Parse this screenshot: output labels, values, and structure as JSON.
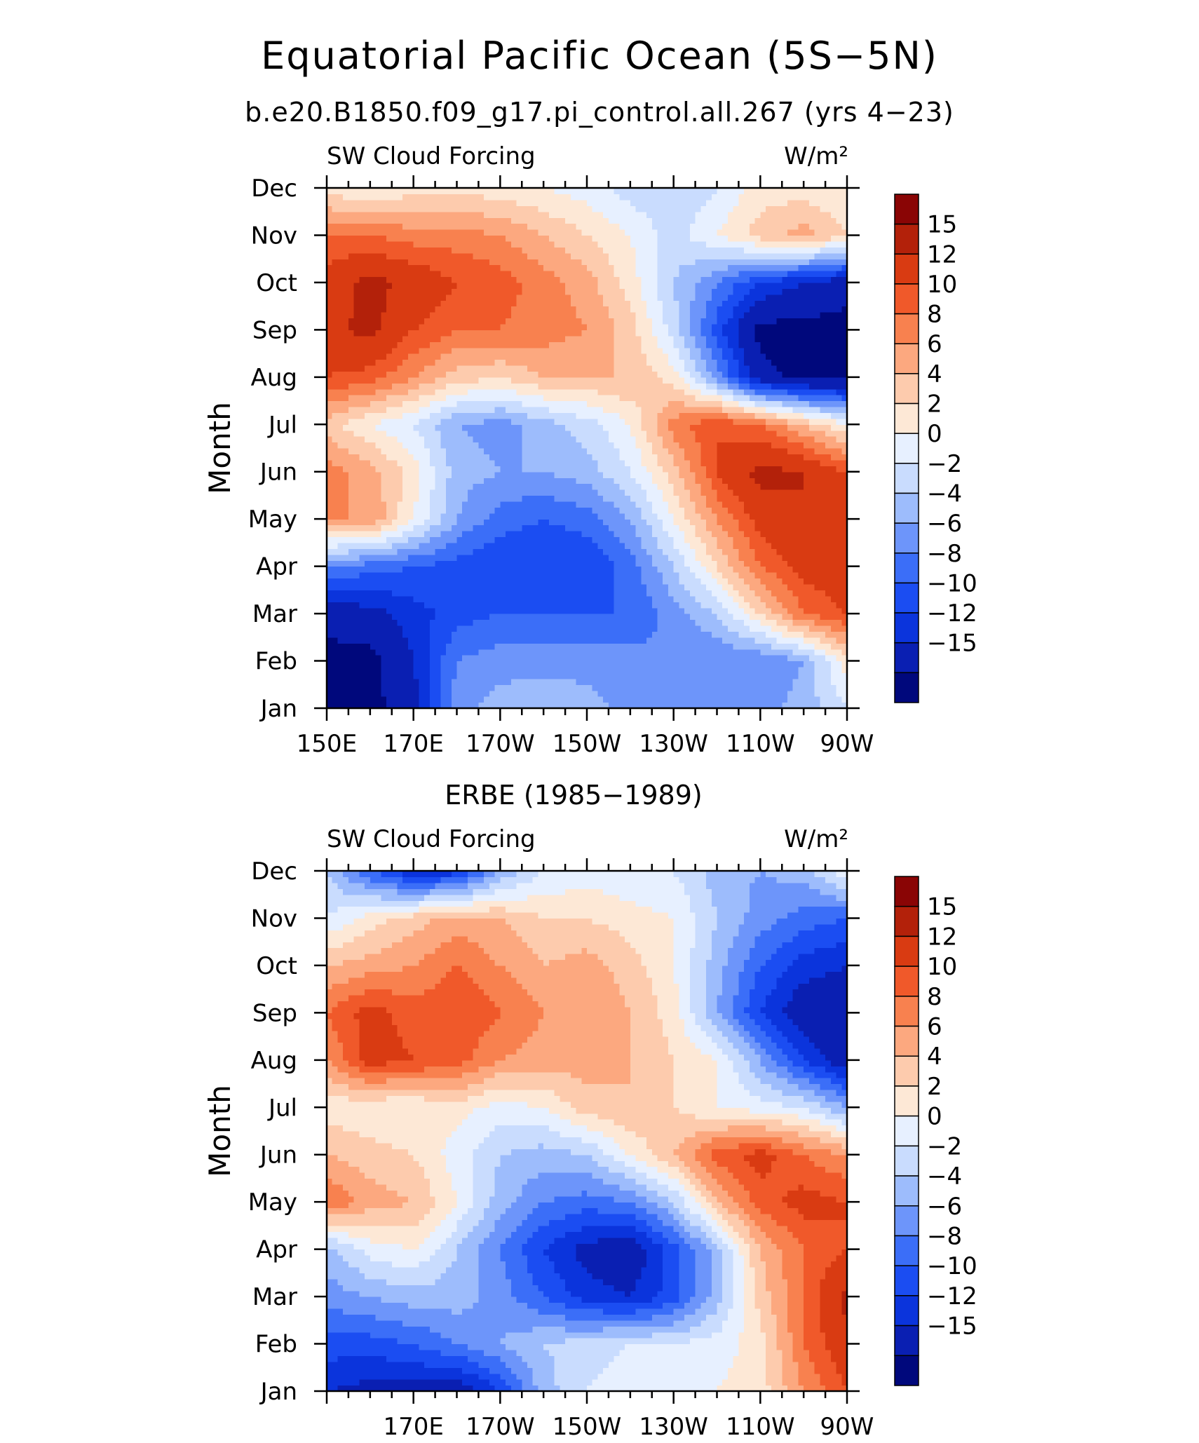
{
  "figure": {
    "title": "Equatorial Pacific Ocean (5S−5N)",
    "case_title": "b.e20.B1850.f09_g17.pi_control.all.267 (yrs 4−23)",
    "second_title": "ERBE (1985−1989)"
  },
  "colors": {
    "levels": [
      -15,
      -12,
      -10,
      -8,
      -6,
      -4,
      -2,
      0,
      2,
      4,
      6,
      8,
      10,
      12,
      15
    ],
    "palette": [
      "#00087c",
      "#0a1fb2",
      "#0b34dc",
      "#1b4df2",
      "#3b6ef8",
      "#6d95fa",
      "#9dbcfc",
      "#c9dcfe",
      "#e7f0ff",
      "#fde8d6",
      "#fdcbad",
      "#fca87f",
      "#f8814f",
      "#f0592a",
      "#d93b12",
      "#b3210a",
      "#8a0505"
    ]
  },
  "chart_data": [
    {
      "type": "heatmap",
      "subtitle_left": "SW Cloud Forcing",
      "units": "W/m²",
      "ylabel": "Month",
      "x_ticklabels": [
        "150E",
        "170E",
        "170W",
        "150W",
        "130W",
        "110W",
        "90W"
      ],
      "x_range_deg_east": [
        150,
        270
      ],
      "y_ticklabels": [
        "Jan",
        "Feb",
        "Mar",
        "Apr",
        "May",
        "Jun",
        "Jul",
        "Aug",
        "Sep",
        "Oct",
        "Nov",
        "Dec"
      ],
      "x_deg_east": [
        150,
        160,
        170,
        180,
        190,
        200,
        210,
        220,
        230,
        240,
        250,
        260,
        270
      ],
      "grid_description": "rows Jan..Dec, columns at x_deg_east",
      "values": [
        [
          -16,
          -16,
          -13,
          -5,
          -3,
          -2,
          -3,
          -5,
          -6,
          -6,
          -5,
          -3,
          0
        ],
        [
          -16,
          -16,
          -12,
          -6,
          -5,
          -5,
          -5,
          -5,
          -6,
          -6,
          -6,
          -4,
          3
        ],
        [
          -14,
          -13,
          -11,
          -9,
          -8,
          -8,
          -8,
          -8,
          -5,
          -2,
          4,
          10,
          12
        ],
        [
          -6,
          -7,
          -8,
          -9,
          -10,
          -10,
          -10,
          -7,
          -2,
          4,
          10,
          13,
          14
        ],
        [
          8,
          8,
          2,
          -4,
          -7,
          -8,
          -7,
          -4,
          2,
          8,
          13,
          15,
          14
        ],
        [
          9,
          7,
          3,
          -3,
          -4,
          -4,
          -3,
          0,
          5,
          12,
          16,
          15,
          12
        ],
        [
          5,
          2,
          0,
          -4,
          -5,
          -3,
          -1,
          2,
          9,
          12,
          10,
          6,
          2
        ],
        [
          12,
          11,
          8,
          5,
          4,
          6,
          6,
          6,
          3,
          -5,
          -14,
          -16,
          -16
        ],
        [
          14,
          16,
          12,
          10,
          10,
          9,
          8,
          5,
          -1,
          -9,
          -16,
          -16,
          -16
        ],
        [
          13,
          16,
          14,
          12,
          11,
          9,
          7,
          3,
          -2,
          -6,
          -10,
          -12,
          -14
        ],
        [
          10,
          10,
          9,
          9,
          8,
          6,
          4,
          2,
          -1,
          2,
          5,
          7,
          4
        ],
        [
          3,
          2,
          3,
          3,
          3,
          2,
          1,
          -1,
          -2,
          0,
          3,
          3,
          2
        ]
      ],
      "colorbar_labels": [
        "15",
        "12",
        "10",
        "8",
        "6",
        "4",
        "2",
        "0",
        "−2",
        "−4",
        "−6",
        "−8",
        "−10",
        "−12",
        "−15"
      ]
    },
    {
      "type": "heatmap",
      "subtitle_left": "SW Cloud Forcing",
      "units": "W/m²",
      "ylabel": "Month",
      "x_ticklabels": [
        "170E",
        "170W",
        "150W",
        "130W",
        "110W",
        "90W"
      ],
      "x_range_deg_east": [
        150,
        270
      ],
      "y_ticklabels": [
        "Jan",
        "Feb",
        "Mar",
        "Apr",
        "May",
        "Jun",
        "Jul",
        "Aug",
        "Sep",
        "Oct",
        "Nov",
        "Dec"
      ],
      "x_deg_east": [
        150,
        160,
        170,
        180,
        190,
        200,
        210,
        220,
        230,
        240,
        250,
        260,
        270
      ],
      "grid_description": "rows Jan..Dec, columns at x_deg_east",
      "values": [
        [
          -12,
          -13,
          -13,
          -14,
          -10,
          -3,
          0,
          1,
          2,
          2,
          3,
          8,
          12
        ],
        [
          -9,
          -9,
          -8,
          -6,
          -4,
          -2,
          -1,
          0,
          0,
          1,
          3,
          10,
          14
        ],
        [
          -5,
          -4,
          -3,
          -3,
          -5,
          -8,
          -11,
          -12,
          -9,
          -3,
          5,
          10,
          16
        ],
        [
          -3,
          1,
          2,
          -2,
          -6,
          -10,
          -13,
          -14,
          -9,
          -3,
          6,
          10,
          12
        ],
        [
          10,
          7,
          6,
          2,
          -3,
          -6,
          -7,
          -6,
          -2,
          6,
          11,
          13,
          12
        ],
        [
          6,
          5,
          4,
          1,
          -2,
          -3,
          -2,
          2,
          6,
          11,
          13,
          10,
          8
        ],
        [
          3,
          2,
          2,
          3,
          1,
          2,
          5,
          6,
          4,
          2,
          1,
          0,
          -4
        ],
        [
          8,
          13,
          12,
          11,
          8,
          7,
          7,
          6,
          4,
          2,
          -4,
          -10,
          -14
        ],
        [
          10,
          13,
          11,
          12,
          10,
          8,
          8,
          6,
          3,
          -4,
          -10,
          -14,
          -15
        ],
        [
          6,
          7,
          8,
          10,
          8,
          6,
          7,
          5,
          2,
          -3,
          -8,
          -11,
          -12
        ],
        [
          0,
          3,
          5,
          7,
          6,
          4,
          4,
          3,
          2,
          -2,
          -5,
          -7,
          -8
        ],
        [
          -2,
          -8,
          -12,
          -11,
          -4,
          0,
          1,
          0,
          0,
          -3,
          -4,
          -3,
          2
        ]
      ],
      "colorbar_labels": [
        "15",
        "12",
        "10",
        "8",
        "6",
        "4",
        "2",
        "0",
        "−2",
        "−4",
        "−6",
        "−8",
        "−10",
        "−12",
        "−15"
      ]
    }
  ]
}
